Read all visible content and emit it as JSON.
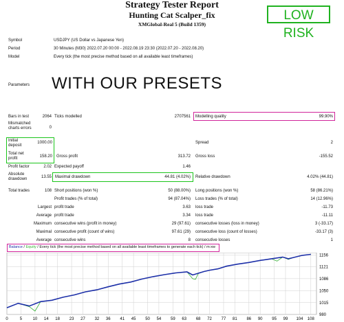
{
  "header": {
    "title": "Strategy Tester Report",
    "subtitle": "Hunting Cat Scalper_fix",
    "server": "XMGlobal-Real 5 (Build 1359)",
    "badge": "LOW RISK"
  },
  "info": {
    "symbol_label": "Symbol",
    "symbol_value": "USDJPY (US Dollar vs Japanese Yen)",
    "period_label": "Period",
    "period_value": "30 Minutes (M30) 2022.07.20 00:00 - 2022.08.19 23:30 (2022.07.20 - 2022.08.20)",
    "model_label": "Model",
    "model_value": "Every tick (the most precise method based on all available least timeframes)",
    "parameters_label": "Parameters",
    "presets_text": "WITH OUR PRESETS"
  },
  "stats": {
    "bars_label": "Bars in test",
    "bars_value": "2064",
    "ticks_label": "Ticks modelled",
    "ticks_value": "2707561",
    "quality_label": "Modelling quality",
    "quality_value": "99.90%",
    "mismatch_label": "Mismatched charts errors",
    "mismatch_value": "0",
    "deposit_label": "Initial deposit",
    "deposit_value": "1000.00",
    "spread_label": "Spread",
    "spread_value": "2",
    "netprofit_label": "Total net profit",
    "netprofit_value": "158.20",
    "grossprofit_label": "Gross profit",
    "grossprofit_value": "313.72",
    "grossloss_label": "Gross loss",
    "grossloss_value": "-155.52",
    "pf_label": "Profit factor",
    "pf_value": "2.02",
    "payoff_label": "Expected payoff",
    "payoff_value": "1.46",
    "absdd_label": "Absolute drawdown",
    "absdd_value": "13.55",
    "maxdd_label": "Maximal drawdown",
    "maxdd_value": "44.81 (4.02%)",
    "reldd_label": "Relative drawdown",
    "reldd_value": "4.02% (44.81)",
    "trades_label": "Total trades",
    "trades_value": "108",
    "short_label": "Short positions (won %)",
    "short_value": "50 (88.00%)",
    "long_label": "Long positions (won %)",
    "long_value": "58 (86.21%)",
    "ptrades_label": "Profit trades (% of total)",
    "ptrades_value": "94 (87.04%)",
    "ltrades_label": "Loss trades (% of total)",
    "ltrades_value": "14 (12.96%)",
    "largest_label": "Largest",
    "lg_profit_label": "profit trade",
    "lg_profit_value": "3.63",
    "lg_loss_label": "loss trade",
    "lg_loss_value": "-11.73",
    "average_label": "Average",
    "av_profit_label": "profit trade",
    "av_profit_value": "3.34",
    "av_loss_label": "loss trade",
    "av_loss_value": "-11.11",
    "maximum_label": "Maximum",
    "mx_wins_label": "consecutive wins (profit in money)",
    "mx_wins_value": "29 (97.61)",
    "mx_losses_label": "consecutive losses (loss in money)",
    "mx_losses_value": "3 (-33.17)",
    "maximal_label": "Maximal",
    "ml_profit_label": "consecutive profit (count of wins)",
    "ml_profit_value": "97.61 (29)",
    "ml_loss_label": "consecutive loss (count of losses)",
    "ml_loss_value": "-33.17 (3)",
    "avg2_label": "Average",
    "av_wins_label": "consecutive wins",
    "av_wins_value": "8",
    "av_losses_label": "consecutive losses",
    "av_losses_value": "1"
  },
  "chart_legend": {
    "balance": "Balance",
    "sep": " / ",
    "equity": "Equity",
    "rest": " / Every tick (the most precise method based on all available least timeframes to generate each tick) / m:xw"
  },
  "chart_data": {
    "type": "line",
    "x_ticks": [
      "0",
      "5",
      "10",
      "14",
      "18",
      "23",
      "27",
      "32",
      "36",
      "41",
      "45",
      "50",
      "54",
      "59",
      "63",
      "68",
      "72",
      "77",
      "81",
      "86",
      "90",
      "95",
      "99",
      "104",
      "108"
    ],
    "y_ticks": [
      "1156",
      "1121",
      "1086",
      "1050",
      "1015",
      "980"
    ],
    "ylim": [
      980,
      1163
    ],
    "xlim": [
      0,
      110
    ],
    "series": [
      {
        "name": "Balance",
        "color": "#1c2fa8",
        "x": [
          0,
          4,
          8,
          12,
          16,
          20,
          24,
          28,
          32,
          36,
          40,
          44,
          48,
          52,
          56,
          60,
          64,
          66,
          68,
          70,
          72,
          75,
          78,
          82,
          86,
          90,
          94,
          98,
          100,
          102,
          105,
          108
        ],
        "y": [
          1000,
          1013,
          1005,
          1018,
          1022,
          1031,
          1038,
          1047,
          1053,
          1062,
          1070,
          1076,
          1085,
          1092,
          1098,
          1103,
          1106,
          1097,
          1102,
          1107,
          1111,
          1115,
          1123,
          1129,
          1134,
          1140,
          1145,
          1150,
          1145,
          1149,
          1155,
          1158
        ]
      },
      {
        "name": "Equity",
        "color": "#35b035",
        "x": [
          0,
          4,
          8,
          10,
          12,
          16,
          20,
          24,
          28,
          32,
          36,
          40,
          44,
          48,
          52,
          56,
          60,
          64,
          66,
          67,
          68,
          70,
          72,
          75,
          78,
          82,
          86,
          90,
          94,
          96,
          98,
          100,
          102,
          105,
          108
        ],
        "y": [
          1000,
          1013,
          1003,
          990,
          1018,
          1022,
          1031,
          1038,
          1047,
          1053,
          1062,
          1070,
          1076,
          1085,
          1092,
          1098,
          1103,
          1106,
          1086,
          1084,
          1101,
          1107,
          1111,
          1115,
          1123,
          1129,
          1134,
          1140,
          1145,
          1138,
          1150,
          1143,
          1149,
          1155,
          1158
        ]
      }
    ]
  }
}
